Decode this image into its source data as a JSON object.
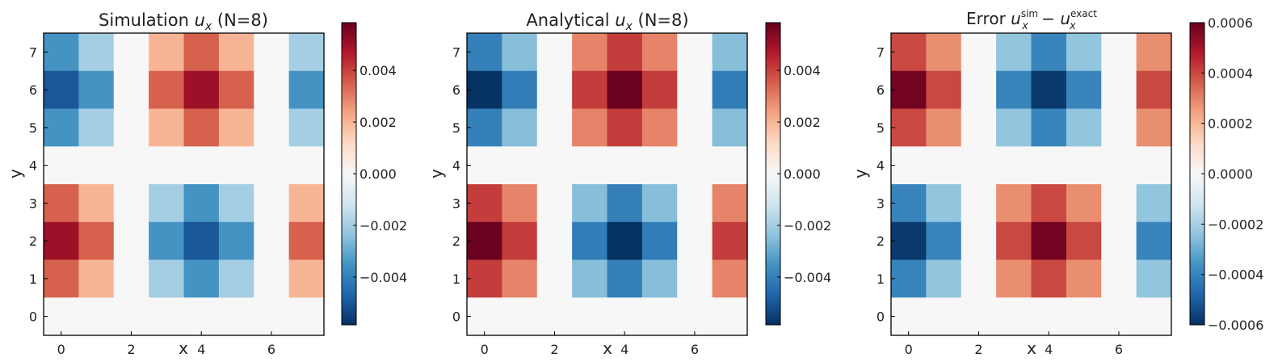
{
  "chart_data": [
    {
      "type": "heatmap",
      "title_main": "Simulation ",
      "title_var": "u",
      "title_sub": "x",
      "title_rest": " (N=8)",
      "xlabel": "x",
      "ylabel": "y",
      "x_ticks": [
        "0",
        "2",
        "4",
        "6"
      ],
      "y_ticks": [
        "0",
        "1",
        "2",
        "3",
        "4",
        "5",
        "6",
        "7"
      ],
      "grid": false,
      "colormap": "RdBu_r",
      "vmin": -0.00585,
      "vmax": 0.00585,
      "colorbar_ticks": [
        0.004,
        0.002,
        0.0,
        -0.002,
        -0.004
      ],
      "colorbar_tick_labels": [
        "0.004",
        "0.002",
        "0.000",
        "−0.002",
        "−0.004"
      ],
      "rows_y7_to_y0": [
        [
          -0.0035,
          -0.002,
          0.0,
          0.002,
          0.0035,
          0.002,
          0.0,
          -0.002
        ],
        [
          -0.005,
          -0.0035,
          0.0,
          0.0035,
          0.005,
          0.0035,
          0.0,
          -0.0035
        ],
        [
          -0.0035,
          -0.002,
          0.0,
          0.002,
          0.0035,
          0.002,
          0.0,
          -0.002
        ],
        [
          0.0,
          0.0,
          0.0,
          0.0,
          0.0,
          0.0,
          0.0,
          0.0
        ],
        [
          0.0035,
          0.002,
          0.0,
          -0.002,
          -0.0035,
          -0.002,
          0.0,
          0.002
        ],
        [
          0.005,
          0.0035,
          0.0,
          -0.0035,
          -0.005,
          -0.0035,
          0.0,
          0.0035
        ],
        [
          0.0035,
          0.002,
          0.0,
          -0.002,
          -0.0035,
          -0.002,
          0.0,
          0.002
        ],
        [
          0.0,
          0.0,
          0.0,
          0.0,
          0.0,
          0.0,
          0.0,
          0.0
        ]
      ]
    },
    {
      "type": "heatmap",
      "title_main": "Analytical ",
      "title_var": "u",
      "title_sub": "x",
      "title_rest": " (N=8)",
      "xlabel": "x",
      "ylabel": "y",
      "x_ticks": [
        "0",
        "2",
        "4",
        "6"
      ],
      "y_ticks": [
        "0",
        "1",
        "2",
        "3",
        "4",
        "5",
        "6",
        "7"
      ],
      "grid": false,
      "colormap": "RdBu_r",
      "vmin": -0.00585,
      "vmax": 0.00585,
      "colorbar_ticks": [
        0.004,
        0.002,
        0.0,
        -0.002,
        -0.004
      ],
      "colorbar_tick_labels": [
        "0.004",
        "0.002",
        "0.000",
        "−0.002",
        "−0.004"
      ],
      "rows_y7_to_y0": [
        [
          -0.004,
          -0.0025,
          0.0,
          0.0029,
          0.0041,
          0.0029,
          0.0,
          -0.0025
        ],
        [
          -0.0058,
          -0.0041,
          0.0,
          0.0041,
          0.0058,
          0.0041,
          0.0,
          -0.0041
        ],
        [
          -0.004,
          -0.0025,
          0.0,
          0.0029,
          0.0041,
          0.0029,
          0.0,
          -0.0025
        ],
        [
          0.0,
          0.0,
          0.0,
          0.0,
          0.0,
          0.0,
          0.0,
          0.0
        ],
        [
          0.0041,
          0.0029,
          0.0,
          -0.0025,
          -0.004,
          -0.0025,
          0.0,
          0.0029
        ],
        [
          0.0058,
          0.0041,
          0.0,
          -0.0041,
          -0.0058,
          -0.0041,
          0.0,
          0.0041
        ],
        [
          0.0041,
          0.0029,
          0.0,
          -0.0025,
          -0.004,
          -0.0025,
          0.0,
          0.0029
        ],
        [
          0.0,
          0.0,
          0.0,
          0.0,
          0.0,
          0.0,
          0.0,
          0.0
        ]
      ]
    },
    {
      "type": "heatmap",
      "title_main": "Error ",
      "title_var": "u",
      "title_sub": "x",
      "title_sup": "sim",
      "title_minus": " − ",
      "title_var2": "u",
      "title_sub2": "x",
      "title_sup2": "exact",
      "xlabel": "x",
      "ylabel": "y",
      "x_ticks": [
        "0",
        "2",
        "4",
        "6"
      ],
      "y_ticks": [
        "0",
        "1",
        "2",
        "3",
        "4",
        "5",
        "6",
        "7"
      ],
      "grid": false,
      "colormap": "RdBu_r",
      "vmin": -0.0006,
      "vmax": 0.0006,
      "colorbar_ticks": [
        0.0006,
        0.0004,
        0.0002,
        0.0,
        -0.0002,
        -0.0004,
        -0.0006
      ],
      "colorbar_tick_labels": [
        "0.0006",
        "0.0004",
        "0.0002",
        "0.0000",
        "−0.0002",
        "−0.0004",
        "−0.0006"
      ],
      "rows_y7_to_y0": [
        [
          0.0004,
          0.00028,
          0.0,
          -0.00024,
          -0.0004,
          -0.00024,
          0.0,
          0.00028
        ],
        [
          0.00058,
          0.0004,
          0.0,
          -0.0004,
          -0.00058,
          -0.0004,
          0.0,
          0.0004
        ],
        [
          0.0004,
          0.00028,
          0.0,
          -0.00024,
          -0.0004,
          -0.00024,
          0.0,
          0.00028
        ],
        [
          0.0,
          0.0,
          0.0,
          0.0,
          0.0,
          0.0,
          0.0,
          0.0
        ],
        [
          -0.0004,
          -0.00024,
          0.0,
          0.00028,
          0.0004,
          0.00028,
          0.0,
          -0.00024
        ],
        [
          -0.00058,
          -0.0004,
          0.0,
          0.0004,
          0.00058,
          0.0004,
          0.0,
          -0.0004
        ],
        [
          -0.0004,
          -0.00024,
          0.0,
          0.00028,
          0.0004,
          0.00028,
          0.0,
          -0.00024
        ],
        [
          0.0,
          0.0,
          0.0,
          0.0,
          0.0,
          0.0,
          0.0,
          0.0
        ]
      ]
    }
  ]
}
